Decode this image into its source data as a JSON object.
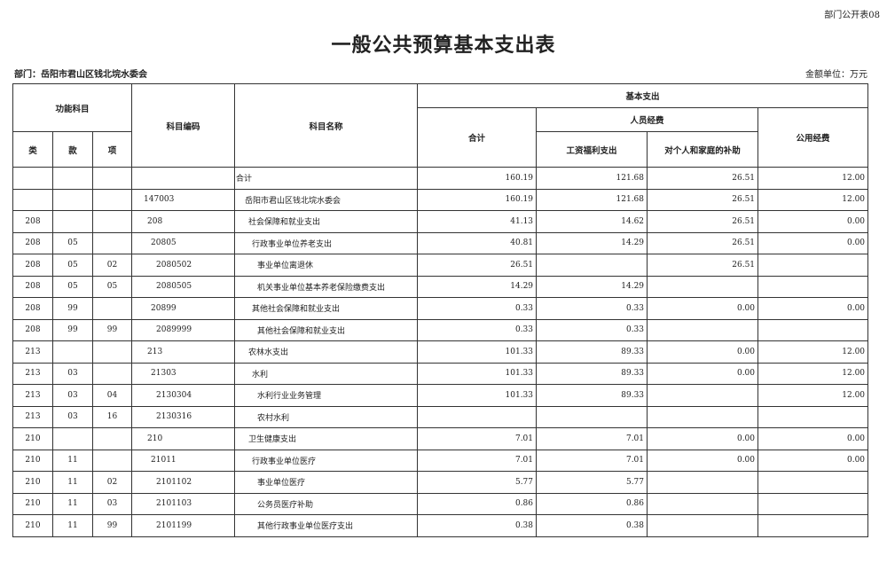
{
  "form_tag": "部门公开表08",
  "title": "一般公共预算基本支出表",
  "department": "部门：岳阳市君山区钱北垸水委会",
  "unit": "金额单位：万元",
  "headers": {
    "func": "功能科目",
    "lei": "类",
    "kuan": "款",
    "xiang": "项",
    "code": "科目编码",
    "name": "科目名称",
    "basic": "基本支出",
    "total": "合计",
    "personnel": "人员经费",
    "wages": "工资福利支出",
    "subsidy": "对个人和家庭的补助",
    "public": "公用经费"
  },
  "rows": [
    {
      "lei": "",
      "kuan": "",
      "xiang": "",
      "code": "",
      "name": "合计",
      "total": "160.19",
      "wages": "121.68",
      "subsidy": "26.51",
      "public": "12.00",
      "lvl": 0
    },
    {
      "lei": "",
      "kuan": "",
      "xiang": "",
      "code": "147003",
      "name": "岳阳市君山区钱北垸水委会",
      "total": "160.19",
      "wages": "121.68",
      "subsidy": "26.51",
      "public": "12.00",
      "lvl": 1
    },
    {
      "lei": "208",
      "kuan": "",
      "xiang": "",
      "code": "208",
      "name": "社会保障和就业支出",
      "total": "41.13",
      "wages": "14.62",
      "subsidy": "26.51",
      "public": "0.00",
      "lvl": 2
    },
    {
      "lei": "208",
      "kuan": "05",
      "xiang": "",
      "code": "20805",
      "name": "行政事业单位养老支出",
      "total": "40.81",
      "wages": "14.29",
      "subsidy": "26.51",
      "public": "0.00",
      "lvl": 3
    },
    {
      "lei": "208",
      "kuan": "05",
      "xiang": "02",
      "code": "2080502",
      "name": "事业单位离退休",
      "total": "26.51",
      "wages": "",
      "subsidy": "26.51",
      "public": "",
      "lvl": 4
    },
    {
      "lei": "208",
      "kuan": "05",
      "xiang": "05",
      "code": "2080505",
      "name": "机关事业单位基本养老保险缴费支出",
      "total": "14.29",
      "wages": "14.29",
      "subsidy": "",
      "public": "",
      "lvl": 4
    },
    {
      "lei": "208",
      "kuan": "99",
      "xiang": "",
      "code": "20899",
      "name": "其他社会保障和就业支出",
      "total": "0.33",
      "wages": "0.33",
      "subsidy": "0.00",
      "public": "0.00",
      "lvl": 3
    },
    {
      "lei": "208",
      "kuan": "99",
      "xiang": "99",
      "code": "2089999",
      "name": "其他社会保障和就业支出",
      "total": "0.33",
      "wages": "0.33",
      "subsidy": "",
      "public": "",
      "lvl": 4
    },
    {
      "lei": "213",
      "kuan": "",
      "xiang": "",
      "code": "213",
      "name": "农林水支出",
      "total": "101.33",
      "wages": "89.33",
      "subsidy": "0.00",
      "public": "12.00",
      "lvl": 2
    },
    {
      "lei": "213",
      "kuan": "03",
      "xiang": "",
      "code": "21303",
      "name": "水利",
      "total": "101.33",
      "wages": "89.33",
      "subsidy": "0.00",
      "public": "12.00",
      "lvl": 3
    },
    {
      "lei": "213",
      "kuan": "03",
      "xiang": "04",
      "code": "2130304",
      "name": "水利行业业务管理",
      "total": "101.33",
      "wages": "89.33",
      "subsidy": "",
      "public": "12.00",
      "lvl": 4
    },
    {
      "lei": "213",
      "kuan": "03",
      "xiang": "16",
      "code": "2130316",
      "name": "农村水利",
      "total": "",
      "wages": "",
      "subsidy": "",
      "public": "",
      "lvl": 4
    },
    {
      "lei": "210",
      "kuan": "",
      "xiang": "",
      "code": "210",
      "name": "卫生健康支出",
      "total": "7.01",
      "wages": "7.01",
      "subsidy": "0.00",
      "public": "0.00",
      "lvl": 2
    },
    {
      "lei": "210",
      "kuan": "11",
      "xiang": "",
      "code": "21011",
      "name": "行政事业单位医疗",
      "total": "7.01",
      "wages": "7.01",
      "subsidy": "0.00",
      "public": "0.00",
      "lvl": 3
    },
    {
      "lei": "210",
      "kuan": "11",
      "xiang": "02",
      "code": "2101102",
      "name": "事业单位医疗",
      "total": "5.77",
      "wages": "5.77",
      "subsidy": "",
      "public": "",
      "lvl": 4
    },
    {
      "lei": "210",
      "kuan": "11",
      "xiang": "03",
      "code": "2101103",
      "name": "公务员医疗补助",
      "total": "0.86",
      "wages": "0.86",
      "subsidy": "",
      "public": "",
      "lvl": 4
    },
    {
      "lei": "210",
      "kuan": "11",
      "xiang": "99",
      "code": "2101199",
      "name": "其他行政事业单位医疗支出",
      "total": "0.38",
      "wages": "0.38",
      "subsidy": "",
      "public": "",
      "lvl": 4
    }
  ]
}
